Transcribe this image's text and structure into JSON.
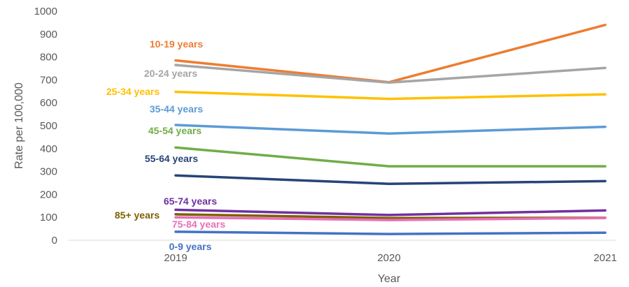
{
  "chart_data": {
    "type": "line",
    "x": [
      "2019",
      "2020",
      "2021"
    ],
    "xlabel": "Year",
    "ylabel": "Rate per 100,000",
    "ylim": [
      0,
      1000
    ],
    "yticks": [
      "0",
      "100",
      "200",
      "300",
      "400",
      "500",
      "600",
      "700",
      "800",
      "900",
      "1000"
    ],
    "grid": false,
    "legend": "direct labels left of lines",
    "series": [
      {
        "name": "10-19 years",
        "values": [
          785,
          690,
          940
        ],
        "color": "#ED7D31"
      },
      {
        "name": "20-24 years",
        "values": [
          765,
          688,
          752
        ],
        "color": "#A5A5A5"
      },
      {
        "name": "25-34 years",
        "values": [
          648,
          617,
          637
        ],
        "color": "#FFC000"
      },
      {
        "name": "35-44 years",
        "values": [
          503,
          466,
          495
        ],
        "color": "#5B9BD5"
      },
      {
        "name": "45-54 years",
        "values": [
          405,
          323,
          323
        ],
        "color": "#70AD47"
      },
      {
        "name": "55-64 years",
        "values": [
          283,
          246,
          258
        ],
        "color": "#264478"
      },
      {
        "name": "65-74 years",
        "values": [
          133,
          110,
          130
        ],
        "color": "#7030A0"
      },
      {
        "name": "85+ years",
        "values": [
          113,
          97,
          98
        ],
        "color": "#7F6000"
      },
      {
        "name": "75-84 years",
        "values": [
          100,
          88,
          97
        ],
        "color": "#E66FB8"
      },
      {
        "name": "0-9 years",
        "values": [
          37,
          27,
          33
        ],
        "color": "#4472C4"
      }
    ]
  }
}
